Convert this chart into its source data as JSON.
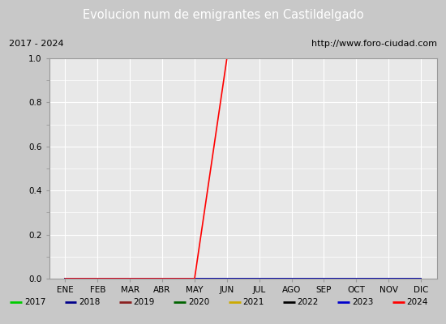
{
  "title": "Evolucion num de emigrantes en Castildelgado",
  "title_bg_color": "#4a8fd4",
  "title_font_color": "white",
  "subtitle_left": "2017 - 2024",
  "subtitle_right": "http://www.foro-ciudad.com",
  "months": [
    "ENE",
    "FEB",
    "MAR",
    "ABR",
    "MAY",
    "JUN",
    "JUL",
    "AGO",
    "SEP",
    "OCT",
    "NOV",
    "DIC"
  ],
  "month_nums": [
    1,
    2,
    3,
    4,
    5,
    6,
    7,
    8,
    9,
    10,
    11,
    12
  ],
  "ylim": [
    0.0,
    1.0
  ],
  "ylabel_ticks": [
    0.0,
    0.2,
    0.4,
    0.6,
    0.8,
    1.0
  ],
  "series": [
    {
      "year": 2017,
      "color": "#00cc00",
      "data": [
        [
          1,
          0
        ],
        [
          12,
          0
        ]
      ]
    },
    {
      "year": 2018,
      "color": "#00008b",
      "data": [
        [
          1,
          0
        ],
        [
          12,
          0
        ]
      ]
    },
    {
      "year": 2019,
      "color": "#8b2020",
      "data": [
        [
          1,
          0
        ],
        [
          12,
          0
        ]
      ]
    },
    {
      "year": 2020,
      "color": "#006400",
      "data": [
        [
          1,
          0
        ],
        [
          12,
          0
        ]
      ]
    },
    {
      "year": 2021,
      "color": "#ccaa00",
      "data": [
        [
          1,
          0
        ],
        [
          12,
          0
        ]
      ]
    },
    {
      "year": 2022,
      "color": "#000000",
      "data": [
        [
          1,
          0
        ],
        [
          12,
          0
        ]
      ]
    },
    {
      "year": 2023,
      "color": "#0000cc",
      "data": [
        [
          1,
          0
        ],
        [
          12,
          0
        ]
      ]
    },
    {
      "year": 2024,
      "color": "#ff0000",
      "data": [
        [
          1,
          0
        ],
        [
          5,
          0
        ],
        [
          6,
          1
        ],
        [
          12,
          1
        ]
      ]
    }
  ],
  "plot_bg_color": "#e8e8e8",
  "grid_color": "#ffffff",
  "border_color": "#999999",
  "fig_bg_color": "#c8c8c8",
  "subtitle_bg_color": "#e8e8e8",
  "legend_bg_color": "#e8e8e8",
  "line_width": 1.2
}
